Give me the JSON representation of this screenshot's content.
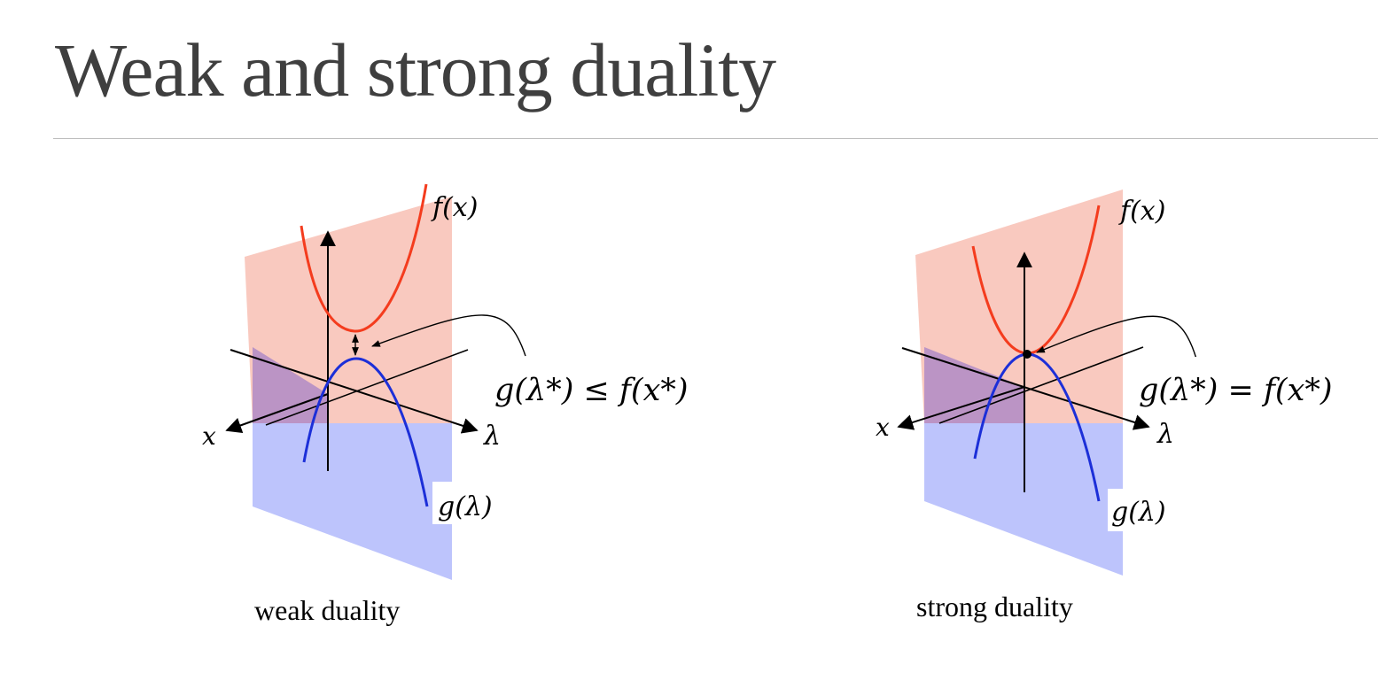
{
  "title": "Weak and strong duality",
  "colors": {
    "primal_plane": "#f6a898",
    "dual_plane": "#aab4fb",
    "primal_curve": "#f43c1e",
    "dual_curve": "#1c2fd8",
    "axis": "#000000",
    "title_text": "#3f3f3f"
  },
  "panels": [
    {
      "caption": "weak duality",
      "primal_label": "f(x)",
      "dual_label": "g(λ)",
      "axis_x_label": "x",
      "axis_lambda_label": "λ",
      "relation": "g(λ*) ≤ f(x*)",
      "gap": "positive"
    },
    {
      "caption": "strong duality",
      "primal_label": "f(x)",
      "dual_label": "g(λ)",
      "axis_x_label": "x",
      "axis_lambda_label": "λ",
      "relation": "g(λ*) = f(x*)",
      "gap": "zero"
    }
  ]
}
